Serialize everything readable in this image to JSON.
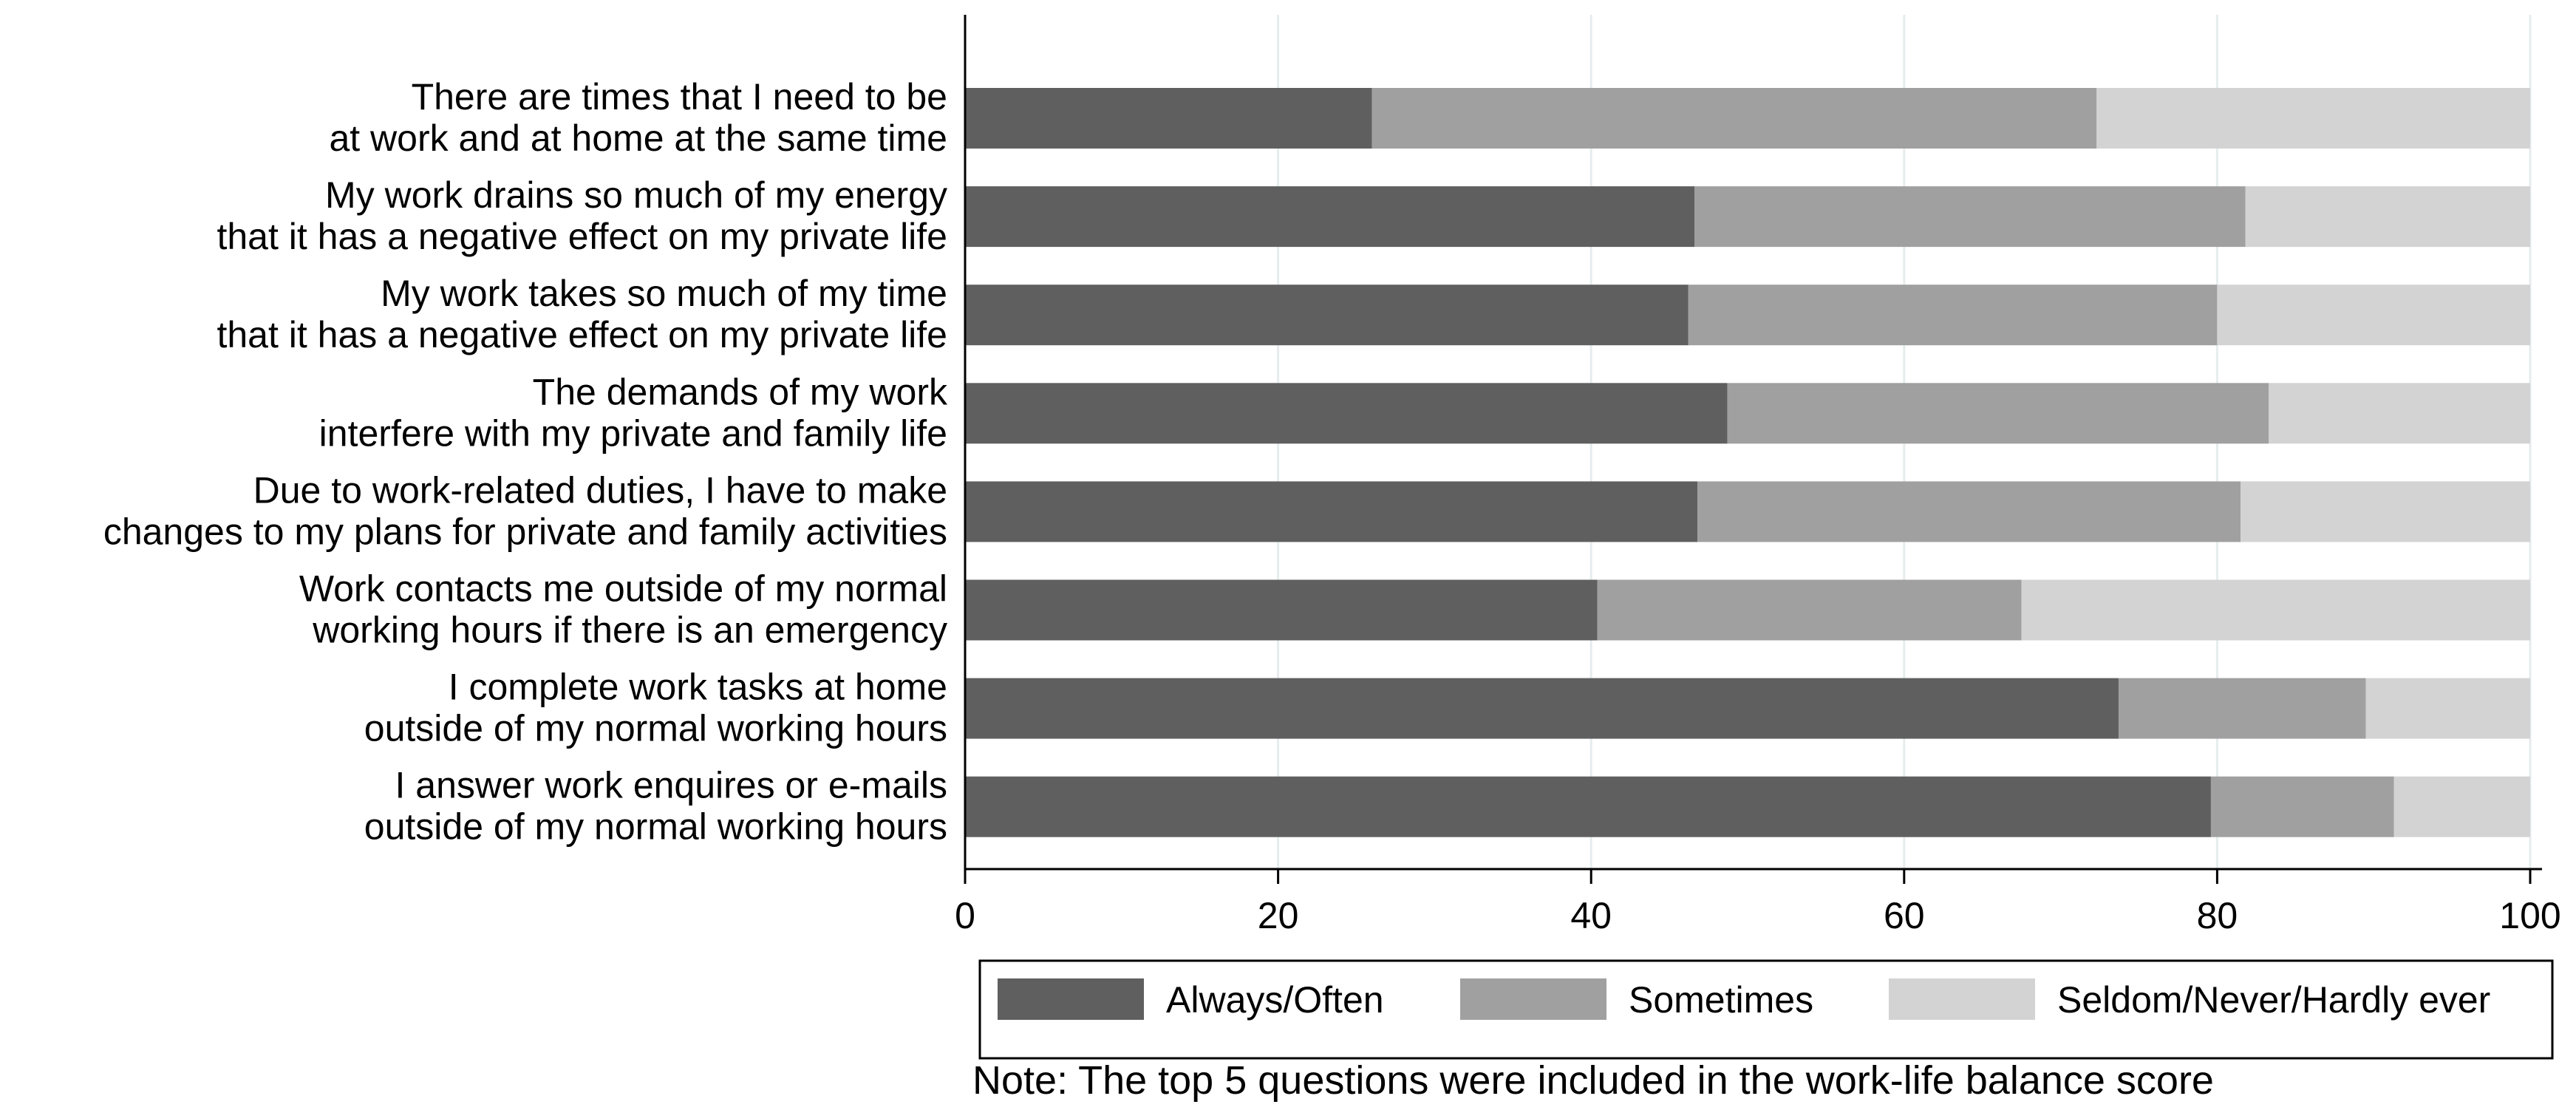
{
  "chart_data": {
    "type": "bar",
    "orientation": "horizontal",
    "stacked": true,
    "title": "",
    "xlabel": "",
    "ylabel": "",
    "xlim": [
      0,
      100
    ],
    "xticks": [
      0,
      20,
      40,
      60,
      80,
      100
    ],
    "grid": true,
    "legend_position": "bottom",
    "categories": [
      [
        "There are times that I need to be",
        "at work and at home at the same time"
      ],
      [
        "My work drains so much of my energy",
        "that it has a negative effect on my private life"
      ],
      [
        "My work takes so much of my time",
        "that it has a negative effect on my private life"
      ],
      [
        "The demands of my work",
        "interfere with my private and family life"
      ],
      [
        "Due to work-related duties, I have to make",
        "changes to my plans for private and family activities"
      ],
      [
        "Work contacts me outside of my normal",
        "working hours if there is an emergency"
      ],
      [
        "I complete work tasks at home",
        "outside of my normal working hours"
      ],
      [
        "I answer work enquires or e-mails",
        "outside of my normal working hours"
      ]
    ],
    "series": [
      {
        "name": "Always/Often",
        "color": "#5f5f5f",
        "values": [
          26.0,
          46.6,
          46.2,
          48.7,
          46.8,
          40.4,
          73.7,
          79.6
        ]
      },
      {
        "name": "Sometimes",
        "color": "#a0a0a0",
        "values": [
          46.3,
          35.2,
          33.8,
          34.6,
          34.7,
          27.1,
          15.8,
          11.7
        ]
      },
      {
        "name": "Seldom/Never/Hardly ever",
        "color": "#d3d3d3",
        "values": [
          27.7,
          18.2,
          20.0,
          16.7,
          18.5,
          32.5,
          10.5,
          8.7
        ]
      }
    ],
    "note": "Note: The top 5 questions were included in the work-life balance score"
  }
}
